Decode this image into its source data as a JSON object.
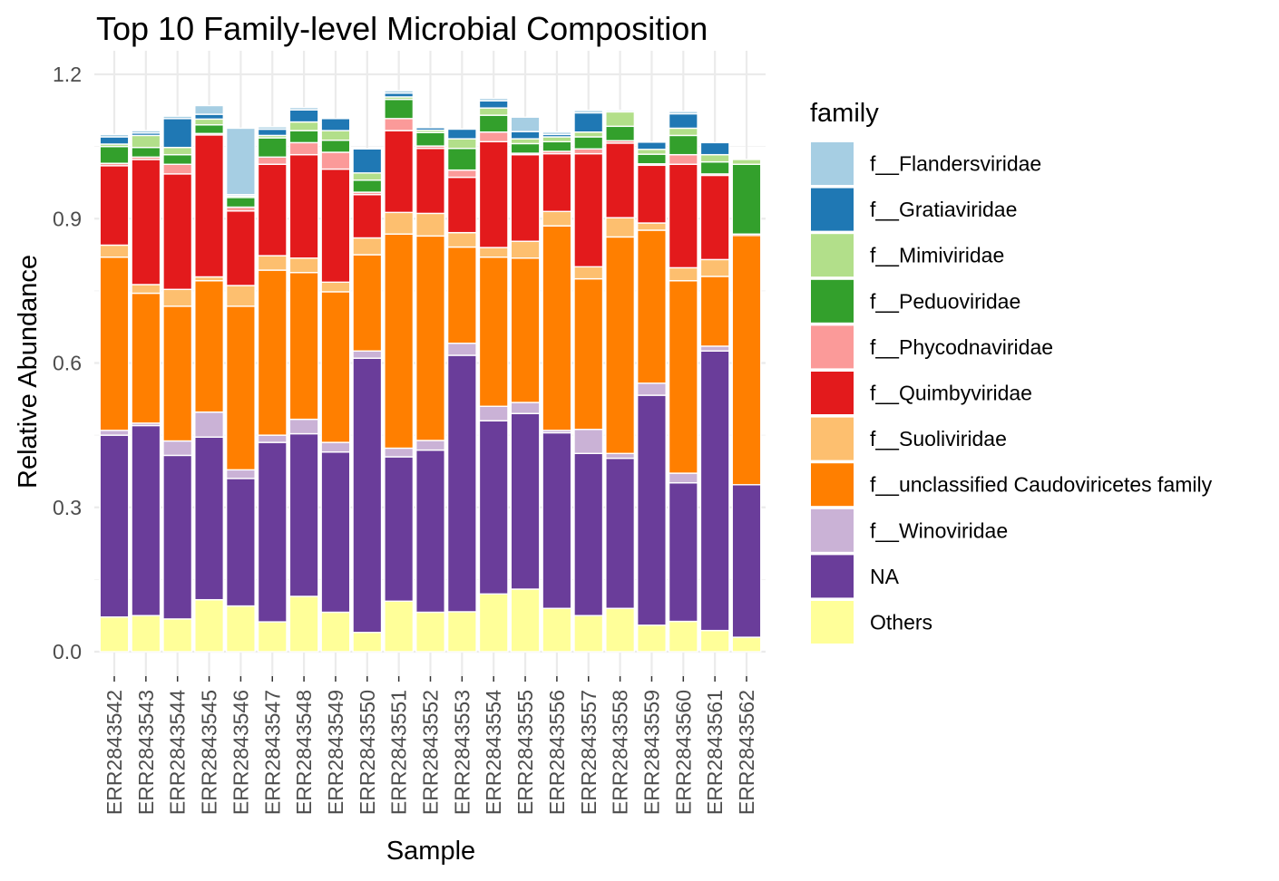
{
  "chart_data": {
    "type": "bar",
    "stacked": true,
    "title": "Top 10 Family-level Microbial Composition",
    "xlabel": "Sample",
    "ylabel": "Relative Abundance",
    "ylim": [
      -0.05,
      1.22
    ],
    "y_ticks": [
      "0.0",
      "0.3",
      "0.6",
      "0.9",
      "1.2"
    ],
    "y_tick_values": [
      0,
      0.3,
      0.6,
      0.9,
      1.2
    ],
    "grid": true,
    "legend_title": "family",
    "legend_position": "right",
    "categories": [
      "ERR2843542",
      "ERR2843543",
      "ERR2843544",
      "ERR2843545",
      "ERR2843546",
      "ERR2843547",
      "ERR2843548",
      "ERR2843549",
      "ERR2843550",
      "ERR2843551",
      "ERR2843552",
      "ERR2843553",
      "ERR2843554",
      "ERR2843555",
      "ERR2843556",
      "ERR2843557",
      "ERR2843558",
      "ERR2843559",
      "ERR2843560",
      "ERR2843561",
      "ERR2843562"
    ],
    "stack_order": "bottom-to-top",
    "series": [
      {
        "name": "Others",
        "color": "#ffff99",
        "values": [
          0.072,
          0.075,
          0.068,
          0.108,
          0.095,
          0.062,
          0.115,
          0.082,
          0.04,
          0.105,
          0.082,
          0.083,
          0.12,
          0.13,
          0.09,
          0.075,
          0.09,
          0.055,
          0.063,
          0.044,
          0.03
        ]
      },
      {
        "name": "NA",
        "color": "#6a3d9a",
        "values": [
          0.378,
          0.395,
          0.34,
          0.338,
          0.265,
          0.373,
          0.338,
          0.333,
          0.57,
          0.3,
          0.337,
          0.533,
          0.36,
          0.365,
          0.365,
          0.337,
          0.312,
          0.478,
          0.288,
          0.581,
          0.317
        ]
      },
      {
        "name": "f__Winoviridae",
        "color": "#cab2d6",
        "values": [
          0.01,
          0.005,
          0.03,
          0.052,
          0.018,
          0.015,
          0.03,
          0.02,
          0.015,
          0.018,
          0.02,
          0.025,
          0.03,
          0.023,
          0.005,
          0.05,
          0.01,
          0.025,
          0.02,
          0.01,
          0.0
        ]
      },
      {
        "name": "f__unclassified Caudoviricetes family",
        "color": "#ff7f00",
        "values": [
          0.36,
          0.27,
          0.28,
          0.273,
          0.34,
          0.343,
          0.305,
          0.313,
          0.2,
          0.445,
          0.425,
          0.2,
          0.31,
          0.3,
          0.425,
          0.313,
          0.45,
          0.318,
          0.4,
          0.145,
          0.518
        ]
      },
      {
        "name": "f__Suoliviridae",
        "color": "#fdbf6f",
        "values": [
          0.025,
          0.018,
          0.035,
          0.008,
          0.043,
          0.03,
          0.03,
          0.02,
          0.035,
          0.045,
          0.047,
          0.03,
          0.02,
          0.035,
          0.03,
          0.025,
          0.04,
          0.015,
          0.027,
          0.035,
          0.0
        ]
      },
      {
        "name": "f__Quimbyviridae",
        "color": "#e31a1c",
        "values": [
          0.165,
          0.26,
          0.24,
          0.295,
          0.155,
          0.19,
          0.215,
          0.235,
          0.09,
          0.17,
          0.135,
          0.115,
          0.22,
          0.18,
          0.12,
          0.235,
          0.155,
          0.12,
          0.215,
          0.175,
          0.003
        ]
      },
      {
        "name": "f__Phycodnaviridae",
        "color": "#fb9a99",
        "values": [
          0.005,
          0.005,
          0.02,
          0.003,
          0.008,
          0.015,
          0.025,
          0.035,
          0.005,
          0.025,
          0.005,
          0.015,
          0.02,
          0.003,
          0.005,
          0.01,
          0.005,
          0.003,
          0.02,
          0.003,
          0.0
        ]
      },
      {
        "name": "f__Peduoviridae",
        "color": "#33a02c",
        "values": [
          0.035,
          0.02,
          0.02,
          0.018,
          0.02,
          0.04,
          0.025,
          0.025,
          0.025,
          0.04,
          0.028,
          0.045,
          0.035,
          0.02,
          0.02,
          0.025,
          0.03,
          0.02,
          0.04,
          0.025,
          0.145
        ]
      },
      {
        "name": "f__Mimiviridae",
        "color": "#b2df8a",
        "values": [
          0.005,
          0.025,
          0.015,
          0.012,
          0.003,
          0.005,
          0.018,
          0.02,
          0.015,
          0.005,
          0.005,
          0.02,
          0.015,
          0.01,
          0.01,
          0.01,
          0.03,
          0.01,
          0.015,
          0.015,
          0.01
        ]
      },
      {
        "name": "f__Gratiaviridae",
        "color": "#1f78b4",
        "values": [
          0.015,
          0.005,
          0.06,
          0.01,
          0.003,
          0.013,
          0.025,
          0.025,
          0.05,
          0.008,
          0.005,
          0.02,
          0.015,
          0.015,
          0.005,
          0.04,
          0.0,
          0.015,
          0.03,
          0.025,
          0.0
        ]
      },
      {
        "name": "f__Flandersviridae",
        "color": "#a6cee3",
        "values": [
          0.005,
          0.005,
          0.005,
          0.018,
          0.138,
          0.005,
          0.005,
          0.0,
          0.0,
          0.005,
          0.0,
          0.0,
          0.005,
          0.03,
          0.005,
          0.005,
          0.003,
          0.0,
          0.005,
          0.0,
          0.0
        ]
      }
    ],
    "legend_order": [
      "f__Flandersviridae",
      "f__Gratiaviridae",
      "f__Mimiviridae",
      "f__Peduoviridae",
      "f__Phycodnaviridae",
      "f__Quimbyviridae",
      "f__Suoliviridae",
      "f__unclassified Caudoviricetes family",
      "f__Winoviridae",
      "NA",
      "Others"
    ]
  }
}
